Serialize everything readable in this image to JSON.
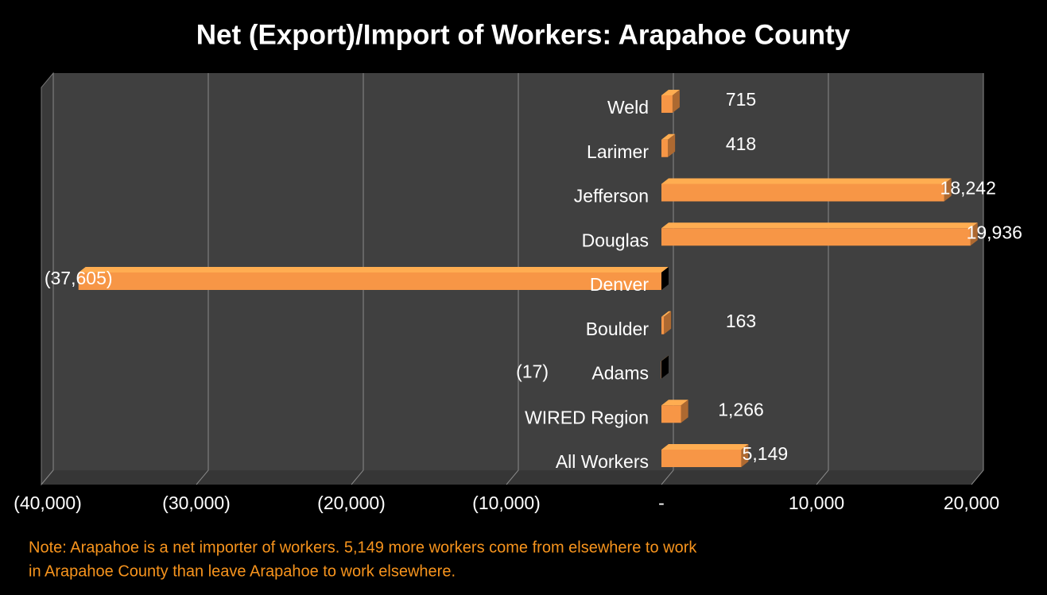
{
  "chart_data": {
    "type": "bar",
    "orientation": "horizontal",
    "title": "Net (Export)/Import of Workers: Arapahoe County",
    "categories": [
      "Weld",
      "Larimer",
      "Jefferson",
      "Douglas",
      "Denver",
      "Boulder",
      "Adams",
      "WIRED Region",
      "All Workers"
    ],
    "values": [
      715,
      418,
      18242,
      19936,
      -37605,
      163,
      -17,
      1266,
      5149
    ],
    "value_labels": [
      "715",
      "418",
      "18,242",
      "19,936",
      "(37,605)",
      "163",
      "(17)",
      "1,266",
      "5,149"
    ],
    "color": "#f79646",
    "negative_label_color": "#ff0000",
    "xlim": [
      -40000,
      20000
    ],
    "xticks": [
      {
        "value": -40000,
        "label": "(40,000)"
      },
      {
        "value": -30000,
        "label": "(30,000)"
      },
      {
        "value": -20000,
        "label": "(20,000)"
      },
      {
        "value": -10000,
        "label": "(10,000)"
      },
      {
        "value": 0,
        "label": "-"
      },
      {
        "value": 10000,
        "label": "10,000"
      },
      {
        "value": 20000,
        "label": "20,000"
      }
    ],
    "grid": true,
    "note": [
      "Note: Arapahoe is a net  importer of workers.  5,149 more workers come from elsewhere to work",
      "in Arapahoe County than leave Arapahoe to work elsewhere."
    ]
  }
}
